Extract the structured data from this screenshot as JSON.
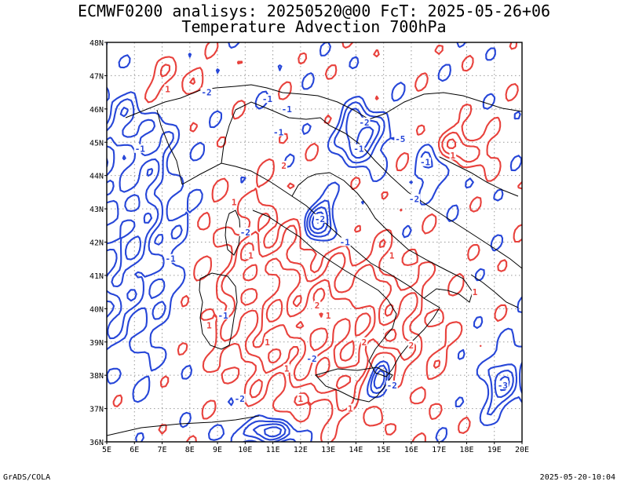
{
  "header": {
    "title_line1": "ECMWF0200 analisys: 20250520@00 FcT: 2025-05-26+06",
    "title_line2": "Temperature Advection 700hPa"
  },
  "axes": {
    "lat_labels": [
      "48N",
      "47N",
      "46N",
      "45N",
      "44N",
      "43N",
      "42N",
      "41N",
      "40N",
      "39N",
      "38N",
      "37N",
      "36N"
    ],
    "lon_labels": [
      "5E",
      "6E",
      "7E",
      "8E",
      "9E",
      "10E",
      "11E",
      "12E",
      "13E",
      "14E",
      "15E",
      "16E",
      "17E",
      "18E",
      "19E",
      "20E"
    ],
    "lat_range": [
      36,
      48
    ],
    "lon_range": [
      5,
      20
    ],
    "grid": "dotted"
  },
  "colors": {
    "positive": "#e8413c",
    "negative": "#2646d8",
    "coast": "#000000"
  },
  "contour_labels": {
    "positive": [
      "1",
      "1",
      "1",
      "2",
      "1",
      "2",
      "1",
      "2",
      "1",
      "1",
      "1",
      "1",
      "2",
      "1",
      "1",
      "1"
    ],
    "negative": [
      "-2",
      "-1",
      "-1",
      "-2",
      "-2",
      "-1",
      "-1",
      "-1",
      "-1",
      "-2",
      "-1",
      "-2",
      "-1",
      "-2",
      "-3",
      "-2",
      "-1",
      "-2",
      "-5"
    ]
  },
  "footer": {
    "left": "GrADS/COLA",
    "right": "2025-05-20-10:04"
  }
}
